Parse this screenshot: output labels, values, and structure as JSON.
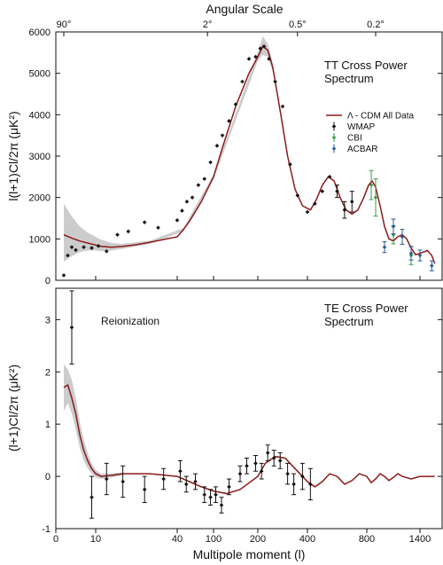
{
  "colors": {
    "model": "#8b1a1a",
    "band": "#cccccc",
    "wmap": "#111111",
    "cbi": "#3c9a4a",
    "acbar": "#2a5a9a"
  },
  "top_axis": {
    "title": "Angular Scale",
    "ticks": [
      {
        "label": "90°",
        "at_l": 2
      },
      {
        "label": "2°",
        "at_l": 90
      },
      {
        "label": "0.5°",
        "at_l": 360
      },
      {
        "label": "0.2°",
        "at_l": 900
      }
    ]
  },
  "x_axis": {
    "title": "Multipole moment (l)",
    "ticks": [
      0,
      10,
      40,
      100,
      200,
      400,
      800,
      1400
    ]
  },
  "chart_data": [
    {
      "type": "scatter",
      "panel": "tt",
      "title": "TT Cross Power Spectrum",
      "title_lines": [
        "TT Cross Power",
        "Spectrum"
      ],
      "ylabel": "l(l+1)Cl/2π (μK²)",
      "ylim": [
        0,
        6000
      ],
      "yticks": [
        0,
        1000,
        2000,
        3000,
        4000,
        5000,
        6000
      ],
      "legend": {
        "placement": "right",
        "entries": [
          {
            "label": "Λ - CDM All Data",
            "kind": "line",
            "color": "#8b1a1a"
          },
          {
            "label": "WMAP",
            "kind": "marker",
            "color": "#111111"
          },
          {
            "label": "CBI",
            "kind": "marker",
            "color": "#3c9a4a"
          },
          {
            "label": "ACBAR",
            "kind": "marker",
            "color": "#2a5a9a"
          }
        ]
      },
      "model": {
        "name": "Λ - CDM All Data",
        "points": [
          [
            2,
            1100
          ],
          [
            4,
            1020
          ],
          [
            6,
            950
          ],
          [
            8,
            900
          ],
          [
            10,
            850
          ],
          [
            12,
            820
          ],
          [
            16,
            800
          ],
          [
            20,
            820
          ],
          [
            25,
            860
          ],
          [
            30,
            920
          ],
          [
            40,
            1050
          ],
          [
            50,
            1220
          ],
          [
            60,
            1420
          ],
          [
            80,
            1900
          ],
          [
            100,
            2500
          ],
          [
            120,
            3200
          ],
          [
            150,
            4200
          ],
          [
            180,
            5000
          ],
          [
            200,
            5400
          ],
          [
            220,
            5650
          ],
          [
            240,
            5560
          ],
          [
            260,
            5150
          ],
          [
            290,
            4100
          ],
          [
            320,
            3000
          ],
          [
            350,
            2200
          ],
          [
            380,
            1800
          ],
          [
            420,
            1700
          ],
          [
            460,
            1950
          ],
          [
            500,
            2300
          ],
          [
            540,
            2500
          ],
          [
            580,
            2400
          ],
          [
            620,
            2000
          ],
          [
            660,
            1700
          ],
          [
            700,
            1600
          ],
          [
            740,
            1700
          ],
          [
            780,
            2000
          ],
          [
            820,
            2300
          ],
          [
            860,
            2400
          ],
          [
            900,
            2250
          ],
          [
            950,
            1800
          ],
          [
            1000,
            1300
          ],
          [
            1050,
            1000
          ],
          [
            1100,
            950
          ],
          [
            1150,
            1050
          ],
          [
            1200,
            1100
          ],
          [
            1250,
            1000
          ],
          [
            1300,
            780
          ],
          [
            1350,
            620
          ],
          [
            1400,
            650
          ],
          [
            1450,
            720
          ],
          [
            1480,
            600
          ],
          [
            1500,
            400
          ]
        ]
      },
      "band": {
        "upper": [
          [
            2,
            1850
          ],
          [
            4,
            1550
          ],
          [
            6,
            1300
          ],
          [
            8,
            1150
          ],
          [
            10,
            1050
          ],
          [
            12,
            980
          ],
          [
            16,
            900
          ],
          [
            20,
            880
          ],
          [
            30,
            960
          ],
          [
            50,
            1260
          ],
          [
            100,
            2560
          ],
          [
            200,
            5500
          ],
          [
            220,
            5900
          ],
          [
            240,
            5720
          ],
          [
            260,
            5260
          ]
        ],
        "lower": [
          [
            2,
            450
          ],
          [
            4,
            580
          ],
          [
            6,
            680
          ],
          [
            8,
            720
          ],
          [
            10,
            720
          ],
          [
            12,
            700
          ],
          [
            16,
            720
          ],
          [
            20,
            760
          ],
          [
            30,
            880
          ],
          [
            50,
            1180
          ],
          [
            100,
            2440
          ],
          [
            200,
            5300
          ],
          [
            220,
            5450
          ],
          [
            240,
            5400
          ],
          [
            260,
            5040
          ]
        ]
      },
      "series": [
        {
          "name": "WMAP",
          "color": "#111111",
          "points": [
            {
              "x": 2,
              "y": 120,
              "err": 0
            },
            {
              "x": 3,
              "y": 600,
              "err": 0
            },
            {
              "x": 4,
              "y": 800,
              "err": 0
            },
            {
              "x": 5,
              "y": 730,
              "err": 0
            },
            {
              "x": 7,
              "y": 800,
              "err": 0
            },
            {
              "x": 9,
              "y": 780,
              "err": 0
            },
            {
              "x": 11,
              "y": 830,
              "err": 0
            },
            {
              "x": 14,
              "y": 700,
              "err": 0
            },
            {
              "x": 18,
              "y": 1100,
              "err": 0
            },
            {
              "x": 22,
              "y": 1180,
              "err": 0
            },
            {
              "x": 28,
              "y": 1400,
              "err": 0
            },
            {
              "x": 33,
              "y": 1270,
              "err": 0
            },
            {
              "x": 40,
              "y": 1450,
              "err": 0
            },
            {
              "x": 48,
              "y": 1680,
              "err": 0
            },
            {
              "x": 56,
              "y": 1900,
              "err": 0
            },
            {
              "x": 65,
              "y": 2000,
              "err": 0
            },
            {
              "x": 75,
              "y": 2300,
              "err": 0
            },
            {
              "x": 85,
              "y": 2450,
              "err": 0
            },
            {
              "x": 95,
              "y": 2850,
              "err": 0
            },
            {
              "x": 108,
              "y": 3250,
              "err": 0
            },
            {
              "x": 120,
              "y": 3500,
              "err": 0
            },
            {
              "x": 135,
              "y": 3850,
              "err": 0
            },
            {
              "x": 150,
              "y": 4250,
              "err": 0
            },
            {
              "x": 165,
              "y": 4800,
              "err": 0
            },
            {
              "x": 180,
              "y": 5350,
              "err": 0
            },
            {
              "x": 195,
              "y": 5400,
              "err": 0
            },
            {
              "x": 210,
              "y": 5600,
              "err": 0
            },
            {
              "x": 225,
              "y": 5650,
              "err": 0
            },
            {
              "x": 245,
              "y": 5350,
              "err": 0
            },
            {
              "x": 270,
              "y": 4800,
              "err": 0
            },
            {
              "x": 300,
              "y": 4200,
              "err": 0
            },
            {
              "x": 330,
              "y": 2800,
              "err": 0
            },
            {
              "x": 360,
              "y": 2050,
              "err": 0
            },
            {
              "x": 400,
              "y": 1650,
              "err": 0
            },
            {
              "x": 450,
              "y": 1850,
              "err": 0
            },
            {
              "x": 500,
              "y": 2150,
              "err": 0
            },
            {
              "x": 550,
              "y": 2500,
              "err": 0
            },
            {
              "x": 600,
              "y": 2150,
              "err": 150
            },
            {
              "x": 650,
              "y": 1700,
              "err": 200
            },
            {
              "x": 700,
              "y": 1900,
              "err": 250
            }
          ]
        },
        {
          "name": "CBI",
          "color": "#3c9a4a",
          "points": [
            {
              "x": 850,
              "y": 2300,
              "err": 350
            },
            {
              "x": 900,
              "y": 2000,
              "err": 450
            },
            {
              "x": 1100,
              "y": 1100,
              "err": 220
            },
            {
              "x": 1300,
              "y": 600,
              "err": 220
            }
          ]
        },
        {
          "name": "ACBAR",
          "color": "#2a5a9a",
          "points": [
            {
              "x": 1000,
              "y": 800,
              "err": 130
            },
            {
              "x": 1100,
              "y": 1300,
              "err": 180
            },
            {
              "x": 1200,
              "y": 1050,
              "err": 180
            },
            {
              "x": 1300,
              "y": 650,
              "err": 160
            },
            {
              "x": 1400,
              "y": 600,
              "err": 130
            },
            {
              "x": 1480,
              "y": 350,
              "err": 120
            }
          ]
        }
      ]
    },
    {
      "type": "scatter",
      "panel": "te",
      "title": "TE Cross Power Spectrum",
      "title_lines": [
        "TE Cross Power",
        "Spectrum"
      ],
      "ylabel": "(l+1)Cl/2π (μK²)",
      "ylim": [
        -1,
        3.6
      ],
      "yticks": [
        -1,
        0,
        1,
        2,
        3
      ],
      "annotations": [
        {
          "text": "Reionization",
          "x": 3.5,
          "y": 3.3
        }
      ],
      "model": {
        "name": "Λ - CDM All Data",
        "points": [
          [
            2,
            1.7
          ],
          [
            3,
            1.75
          ],
          [
            4,
            1.5
          ],
          [
            5,
            1.2
          ],
          [
            6,
            0.8
          ],
          [
            7,
            0.5
          ],
          [
            8,
            0.3
          ],
          [
            9,
            0.15
          ],
          [
            10,
            0.05
          ],
          [
            12,
            0.0
          ],
          [
            16,
            0.02
          ],
          [
            20,
            0.05
          ],
          [
            30,
            0.05
          ],
          [
            40,
            0.0
          ],
          [
            60,
            -0.1
          ],
          [
            80,
            -0.2
          ],
          [
            100,
            -0.28
          ],
          [
            130,
            -0.33
          ],
          [
            160,
            -0.25
          ],
          [
            200,
            0.0
          ],
          [
            230,
            0.25
          ],
          [
            270,
            0.38
          ],
          [
            310,
            0.35
          ],
          [
            350,
            0.15
          ],
          [
            400,
            -0.1
          ],
          [
            450,
            -0.2
          ],
          [
            500,
            -0.1
          ],
          [
            550,
            0.05
          ],
          [
            600,
            0.0
          ],
          [
            650,
            -0.15
          ],
          [
            700,
            -0.08
          ],
          [
            750,
            0.05
          ],
          [
            800,
            0.0
          ],
          [
            850,
            -0.12
          ],
          [
            900,
            -0.05
          ],
          [
            950,
            0.05
          ],
          [
            1000,
            0.0
          ],
          [
            1050,
            -0.08
          ],
          [
            1100,
            -0.02
          ],
          [
            1150,
            0.05
          ],
          [
            1200,
            0.0
          ],
          [
            1300,
            -0.05
          ],
          [
            1400,
            0.0
          ],
          [
            1500,
            0.0
          ]
        ]
      },
      "band": {
        "upper": [
          [
            2,
            2.15
          ],
          [
            3,
            2.05
          ],
          [
            4,
            1.85
          ],
          [
            5,
            1.5
          ],
          [
            6,
            1.05
          ],
          [
            7,
            0.7
          ],
          [
            8,
            0.45
          ],
          [
            9,
            0.25
          ],
          [
            10,
            0.12
          ],
          [
            12,
            0.05
          ],
          [
            16,
            0.06
          ],
          [
            20,
            0.08
          ]
        ],
        "lower": [
          [
            2,
            1.25
          ],
          [
            3,
            1.4
          ],
          [
            4,
            1.2
          ],
          [
            5,
            0.9
          ],
          [
            6,
            0.55
          ],
          [
            7,
            0.3
          ],
          [
            8,
            0.15
          ],
          [
            9,
            0.05
          ],
          [
            10,
            -0.02
          ],
          [
            12,
            -0.05
          ],
          [
            16,
            -0.02
          ],
          [
            20,
            0.02
          ]
        ]
      },
      "series": [
        {
          "name": "WMAP",
          "color": "#111111",
          "points": [
            {
              "x": 4,
              "y": 2.85,
              "err": 0.7
            },
            {
              "x": 9,
              "y": -0.4,
              "err": 0.4
            },
            {
              "x": 14,
              "y": -0.05,
              "err": 0.3
            },
            {
              "x": 20,
              "y": -0.1,
              "err": 0.3
            },
            {
              "x": 28,
              "y": -0.25,
              "err": 0.25
            },
            {
              "x": 35,
              "y": -0.05,
              "err": 0.2
            },
            {
              "x": 45,
              "y": 0.1,
              "err": 0.2
            },
            {
              "x": 55,
              "y": -0.15,
              "err": 0.15
            },
            {
              "x": 70,
              "y": -0.1,
              "err": 0.15
            },
            {
              "x": 85,
              "y": -0.35,
              "err": 0.15
            },
            {
              "x": 95,
              "y": -0.4,
              "err": 0.15
            },
            {
              "x": 105,
              "y": -0.35,
              "err": 0.15
            },
            {
              "x": 118,
              "y": -0.55,
              "err": 0.15
            },
            {
              "x": 135,
              "y": -0.2,
              "err": 0.15
            },
            {
              "x": 160,
              "y": 0.05,
              "err": 0.15
            },
            {
              "x": 175,
              "y": 0.2,
              "err": 0.15
            },
            {
              "x": 195,
              "y": 0.25,
              "err": 0.15
            },
            {
              "x": 215,
              "y": 0.1,
              "err": 0.15
            },
            {
              "x": 240,
              "y": 0.45,
              "err": 0.15
            },
            {
              "x": 265,
              "y": 0.35,
              "err": 0.15
            },
            {
              "x": 290,
              "y": 0.3,
              "err": 0.15
            },
            {
              "x": 320,
              "y": 0.05,
              "err": 0.2
            },
            {
              "x": 345,
              "y": -0.15,
              "err": 0.2
            },
            {
              "x": 380,
              "y": 0.0,
              "err": 0.25
            },
            {
              "x": 420,
              "y": -0.15,
              "err": 0.3
            }
          ]
        }
      ]
    }
  ]
}
